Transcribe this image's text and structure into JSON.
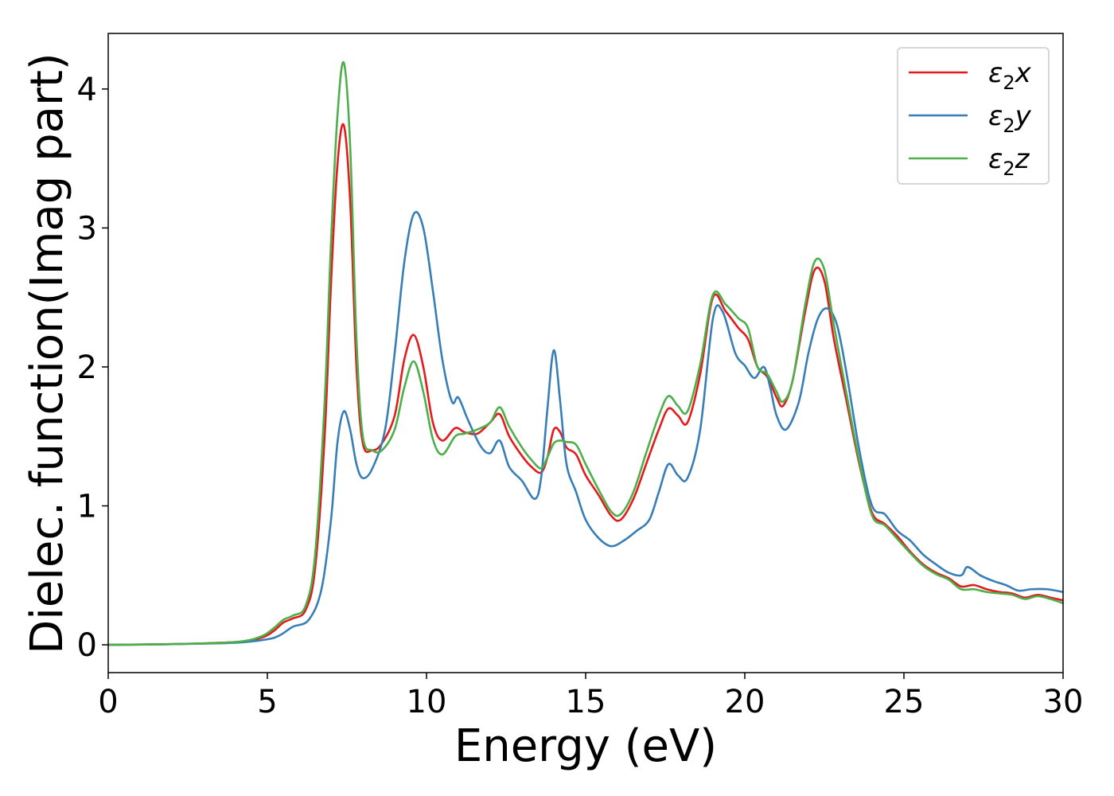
{
  "chart_data": {
    "type": "line",
    "title": "",
    "xlabel": "Energy (eV)",
    "ylabel": "Dielec. function(Imag part)",
    "xlim": [
      0,
      30
    ],
    "ylim": [
      -0.2,
      4.4
    ],
    "xticks": [
      0,
      5,
      10,
      15,
      20,
      25,
      30
    ],
    "yticks": [
      0,
      1,
      2,
      3,
      4
    ],
    "grid": false,
    "legend_position": "top-right",
    "series": [
      {
        "name": "ε₂x",
        "legend_main": "ε",
        "legend_sub": "2",
        "legend_suffix": "x",
        "color": "#e41a1c",
        "x": [
          0,
          2,
          4,
          4.8,
          5.2,
          5.5,
          5.8,
          6.2,
          6.5,
          6.8,
          7.0,
          7.2,
          7.4,
          7.6,
          7.8,
          8.0,
          8.3,
          8.6,
          9.0,
          9.3,
          9.6,
          9.9,
          10.2,
          10.5,
          10.9,
          11.2,
          11.6,
          12.0,
          12.3,
          12.6,
          13.0,
          13.3,
          13.6,
          13.8,
          14.0,
          14.2,
          14.4,
          14.7,
          15.0,
          15.4,
          15.8,
          16.1,
          16.5,
          16.9,
          17.3,
          17.6,
          17.9,
          18.2,
          18.6,
          19.0,
          19.4,
          19.8,
          20.1,
          20.4,
          20.7,
          21.0,
          21.2,
          21.5,
          21.9,
          22.2,
          22.5,
          22.8,
          23.2,
          23.6,
          24.0,
          24.4,
          24.8,
          25.2,
          25.6,
          26.0,
          26.4,
          26.8,
          27.2,
          27.6,
          28.0,
          28.4,
          28.8,
          29.2,
          29.6,
          30.0
        ],
        "y": [
          0,
          0.005,
          0.02,
          0.05,
          0.1,
          0.16,
          0.19,
          0.25,
          0.55,
          1.5,
          2.6,
          3.45,
          3.74,
          3.2,
          2.0,
          1.45,
          1.4,
          1.45,
          1.65,
          2.05,
          2.23,
          2.0,
          1.6,
          1.47,
          1.56,
          1.53,
          1.52,
          1.6,
          1.66,
          1.5,
          1.36,
          1.28,
          1.24,
          1.35,
          1.55,
          1.53,
          1.42,
          1.37,
          1.22,
          1.08,
          0.93,
          0.9,
          1.05,
          1.3,
          1.55,
          1.7,
          1.65,
          1.6,
          1.95,
          2.5,
          2.4,
          2.28,
          2.2,
          2.0,
          1.93,
          1.78,
          1.72,
          1.9,
          2.4,
          2.7,
          2.62,
          2.2,
          1.75,
          1.3,
          0.95,
          0.87,
          0.78,
          0.67,
          0.58,
          0.52,
          0.48,
          0.42,
          0.43,
          0.4,
          0.38,
          0.37,
          0.34,
          0.36,
          0.34,
          0.32
        ]
      },
      {
        "name": "ε₂y",
        "legend_main": "ε",
        "legend_sub": "2",
        "legend_suffix": "y",
        "color": "#377eb8",
        "x": [
          0,
          2,
          4,
          5.0,
          5.4,
          5.8,
          6.3,
          6.7,
          7.0,
          7.2,
          7.4,
          7.6,
          7.8,
          8.0,
          8.3,
          8.7,
          9.0,
          9.3,
          9.6,
          9.9,
          10.2,
          10.5,
          10.8,
          11.0,
          11.3,
          11.7,
          12.0,
          12.3,
          12.6,
          13.0,
          13.4,
          13.6,
          13.8,
          14.0,
          14.2,
          14.4,
          14.7,
          15.0,
          15.4,
          15.8,
          16.2,
          16.6,
          17.0,
          17.3,
          17.6,
          17.9,
          18.2,
          18.6,
          19.0,
          19.3,
          19.7,
          20.0,
          20.3,
          20.6,
          20.8,
          21.0,
          21.3,
          21.7,
          22.0,
          22.3,
          22.6,
          22.9,
          23.2,
          23.6,
          24.0,
          24.4,
          24.8,
          25.2,
          25.6,
          26.0,
          26.4,
          26.8,
          27.0,
          27.4,
          27.8,
          28.2,
          28.6,
          29.0,
          29.5,
          30.0
        ],
        "y": [
          0,
          0.005,
          0.015,
          0.04,
          0.07,
          0.13,
          0.18,
          0.4,
          0.9,
          1.45,
          1.68,
          1.55,
          1.3,
          1.2,
          1.27,
          1.55,
          2.1,
          2.75,
          3.1,
          3.0,
          2.55,
          2.05,
          1.75,
          1.78,
          1.62,
          1.43,
          1.38,
          1.47,
          1.28,
          1.18,
          1.05,
          1.2,
          1.7,
          2.12,
          1.75,
          1.3,
          1.1,
          0.9,
          0.77,
          0.71,
          0.75,
          0.82,
          0.9,
          1.1,
          1.3,
          1.22,
          1.2,
          1.55,
          2.35,
          2.4,
          2.1,
          2.01,
          1.92,
          2.0,
          1.85,
          1.65,
          1.55,
          1.75,
          2.1,
          2.35,
          2.42,
          2.3,
          1.95,
          1.4,
          1.0,
          0.94,
          0.82,
          0.75,
          0.65,
          0.58,
          0.52,
          0.5,
          0.56,
          0.5,
          0.46,
          0.43,
          0.39,
          0.4,
          0.4,
          0.38
        ]
      },
      {
        "name": "ε₂z",
        "legend_main": "ε",
        "legend_sub": "2",
        "legend_suffix": "z",
        "color": "#4daf4a",
        "x": [
          0,
          2,
          4,
          4.8,
          5.2,
          5.5,
          5.8,
          6.2,
          6.5,
          6.8,
          7.0,
          7.2,
          7.4,
          7.6,
          7.8,
          8.0,
          8.3,
          8.6,
          9.0,
          9.3,
          9.6,
          9.9,
          10.2,
          10.5,
          10.9,
          11.2,
          11.6,
          12.0,
          12.3,
          12.6,
          13.0,
          13.3,
          13.6,
          13.8,
          14.0,
          14.2,
          14.4,
          14.7,
          15.0,
          15.4,
          15.8,
          16.1,
          16.5,
          16.9,
          17.3,
          17.6,
          17.9,
          18.2,
          18.6,
          19.0,
          19.4,
          19.8,
          20.1,
          20.4,
          20.7,
          21.0,
          21.2,
          21.5,
          21.9,
          22.2,
          22.5,
          22.8,
          23.2,
          23.6,
          24.0,
          24.4,
          24.8,
          25.2,
          25.6,
          26.0,
          26.4,
          26.8,
          27.2,
          27.6,
          28.0,
          28.4,
          28.8,
          29.2,
          29.6,
          30.0
        ],
        "y": [
          0,
          0.005,
          0.02,
          0.06,
          0.12,
          0.18,
          0.21,
          0.28,
          0.65,
          1.75,
          2.9,
          3.8,
          4.19,
          3.6,
          2.2,
          1.5,
          1.4,
          1.4,
          1.55,
          1.85,
          2.04,
          1.82,
          1.48,
          1.37,
          1.5,
          1.52,
          1.55,
          1.6,
          1.71,
          1.57,
          1.42,
          1.33,
          1.27,
          1.35,
          1.45,
          1.47,
          1.46,
          1.44,
          1.3,
          1.12,
          0.96,
          0.94,
          1.1,
          1.38,
          1.65,
          1.79,
          1.72,
          1.68,
          2.02,
          2.52,
          2.45,
          2.35,
          2.28,
          2.0,
          1.95,
          1.82,
          1.75,
          1.9,
          2.45,
          2.76,
          2.7,
          2.3,
          1.8,
          1.32,
          0.93,
          0.86,
          0.76,
          0.66,
          0.57,
          0.51,
          0.47,
          0.4,
          0.4,
          0.38,
          0.37,
          0.36,
          0.33,
          0.35,
          0.33,
          0.3
        ]
      }
    ]
  }
}
